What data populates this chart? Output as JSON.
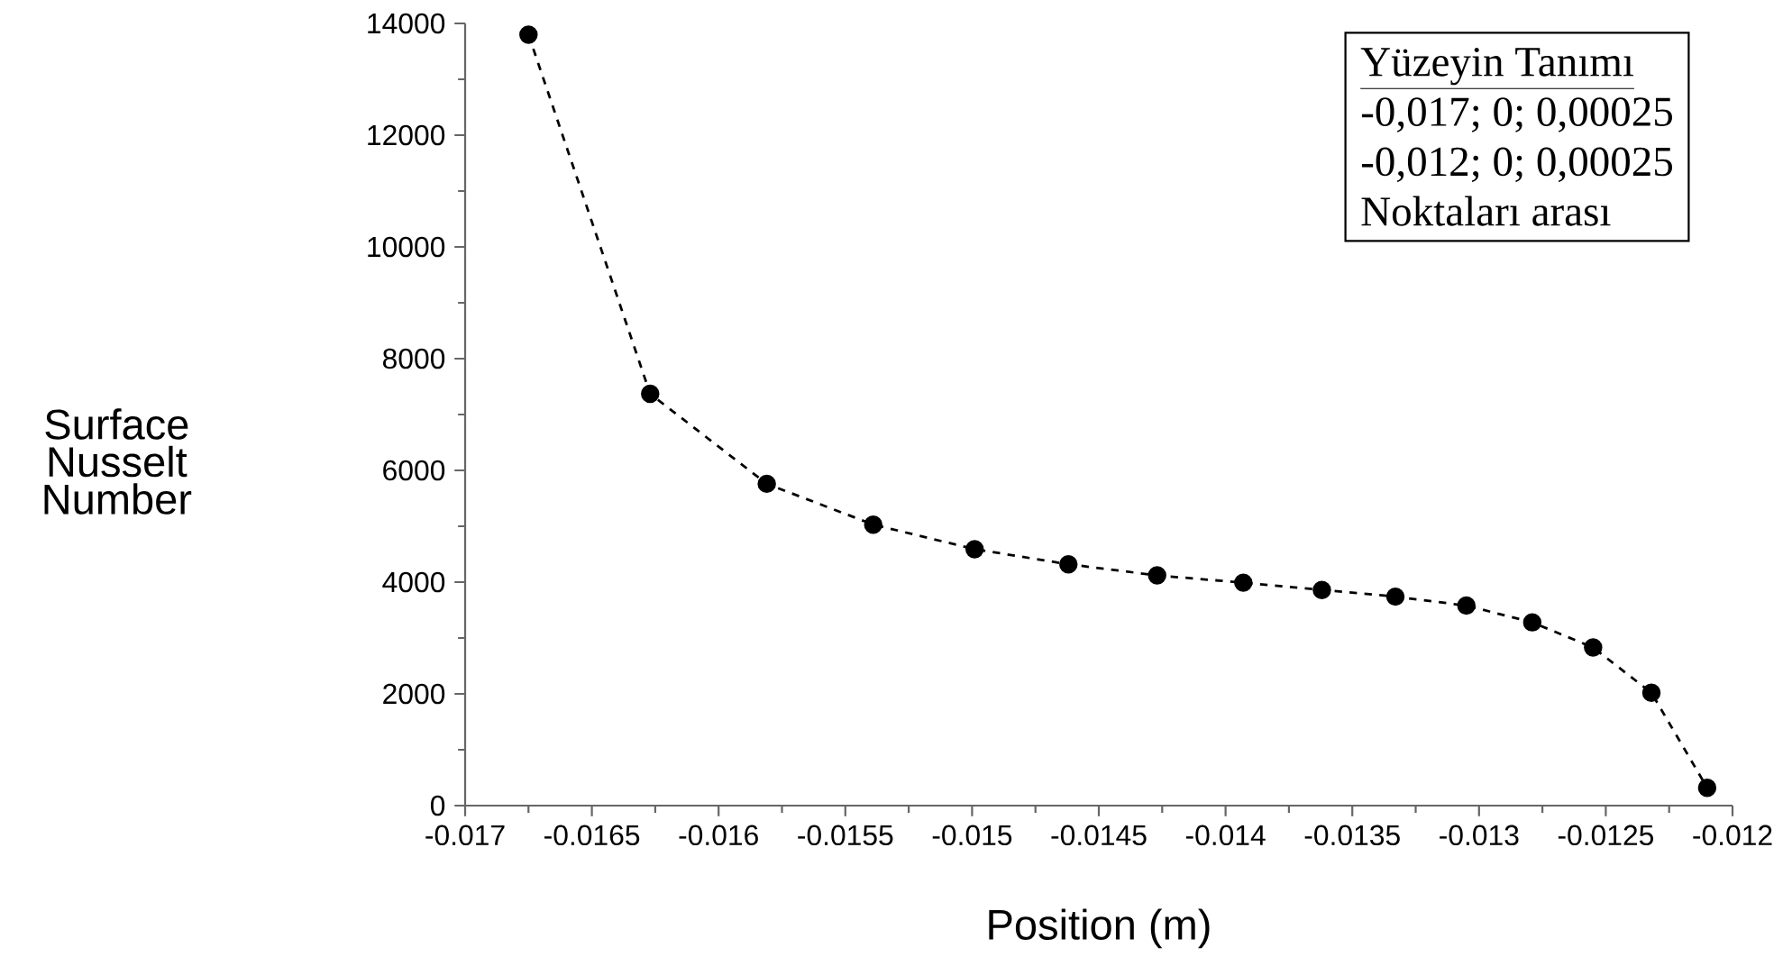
{
  "chart_data": {
    "type": "line",
    "xlabel": "Position (m)",
    "ylabel": "Surface Nusselt Number",
    "annotations": [
      "Yüzeyin Tanımı",
      "-0,017; 0; 0,00025",
      "-0,012; 0; 0,00025",
      "Noktaları arası"
    ],
    "x": [
      -0.01675,
      -0.01627,
      -0.01581,
      -0.01539,
      -0.01499,
      -0.01462,
      -0.01427,
      -0.01393,
      -0.01362,
      -0.01333,
      -0.01305,
      -0.01279,
      -0.01255,
      -0.01232,
      -0.0121
    ],
    "series": [
      {
        "color": "#000000",
        "values": [
          13800,
          7370,
          5760,
          5030,
          4590,
          4320,
          4120,
          3990,
          3860,
          3740,
          3580,
          3280,
          2830,
          2020,
          320
        ]
      }
    ],
    "xlim": [
      -0.017,
      -0.012
    ],
    "ylim": [
      0,
      14000
    ],
    "xticks": [
      -0.017,
      -0.0165,
      -0.016,
      -0.0155,
      -0.015,
      -0.0145,
      -0.014,
      -0.0135,
      -0.013,
      -0.0125,
      -0.012
    ],
    "yticks": [
      0,
      2000,
      4000,
      6000,
      8000,
      10000,
      12000,
      14000
    ],
    "grid": false,
    "marker": "circle",
    "line_style": "dashed"
  }
}
